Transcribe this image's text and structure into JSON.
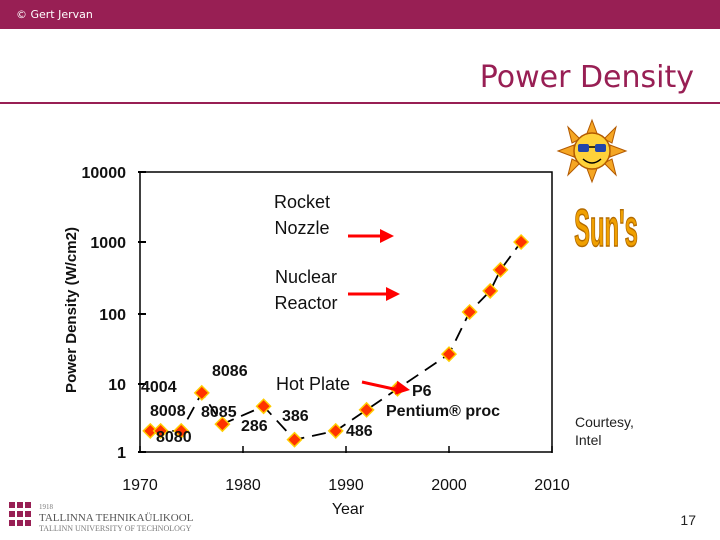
{
  "header": {
    "copyright": "© Gert Jervan"
  },
  "slide": {
    "title": "Power Density",
    "page_number": "17"
  },
  "courtesy": {
    "line1": "Courtesy,",
    "line2": "Intel"
  },
  "university": {
    "year": "1918",
    "name_et": "TALLINNA TEHNIKAÜLIKOOL",
    "name_en": "TALLINN UNIVERSITY OF TECHNOLOGY"
  },
  "colors": {
    "accent": "#981f54",
    "marker": "#ff3300",
    "marker_edge": "#ffcc00",
    "line": "#000000",
    "arrow": "#ff0000"
  },
  "chart_data": {
    "type": "line",
    "ylabel": "Power Density (W/cm2)",
    "xlabel": "Year",
    "ylim": [
      1,
      10000
    ],
    "yscale": "log",
    "xlim": [
      1970,
      2010
    ],
    "yticks": [
      "10000",
      "1000",
      "100",
      "10",
      "1"
    ],
    "xticks": [
      "1970",
      "1980",
      "1990",
      "2000",
      "2010"
    ],
    "series": [
      {
        "points": [
          {
            "x": 1971,
            "y": 2.0,
            "label": "4004"
          },
          {
            "x": 1972,
            "y": 2.0,
            "label": "8008"
          },
          {
            "x": 1974,
            "y": 2.0,
            "label": "8080"
          },
          {
            "x": 1976,
            "y": 7.0,
            "label": "8086"
          },
          {
            "x": 1978,
            "y": 2.5,
            "label": "8085"
          },
          {
            "x": 1982,
            "y": 4.5,
            "label": "286"
          },
          {
            "x": 1985,
            "y": 1.5,
            "label": "386"
          },
          {
            "x": 1989,
            "y": 2.0,
            "label": "486"
          },
          {
            "x": 1992,
            "y": 4.0,
            "label": ""
          },
          {
            "x": 1995,
            "y": 8.0,
            "label": "P6"
          },
          {
            "x": 2000,
            "y": 25,
            "label": ""
          },
          {
            "x": 2002,
            "y": 100,
            "label": ""
          },
          {
            "x": 2004,
            "y": 200,
            "label": ""
          },
          {
            "x": 2005,
            "y": 400,
            "label": ""
          },
          {
            "x": 2007,
            "y": 1000,
            "label": ""
          }
        ]
      }
    ],
    "point_labels": [
      "4004",
      "8008",
      "8080",
      "8086",
      "8085",
      "286",
      "386",
      "486",
      "P6",
      "Pentium® proc"
    ],
    "annotations": [
      {
        "text_lines": [
          "Rocket",
          "Nozzle"
        ],
        "arrow": true
      },
      {
        "text_lines": [
          "Nuclear",
          "Reactor"
        ],
        "arrow": true
      },
      {
        "text_lines": [
          "Hot Plate"
        ],
        "arrow": true
      }
    ],
    "side_image": {
      "caption": "Sun's",
      "icon": "sun-with-sunglasses-icon"
    }
  }
}
